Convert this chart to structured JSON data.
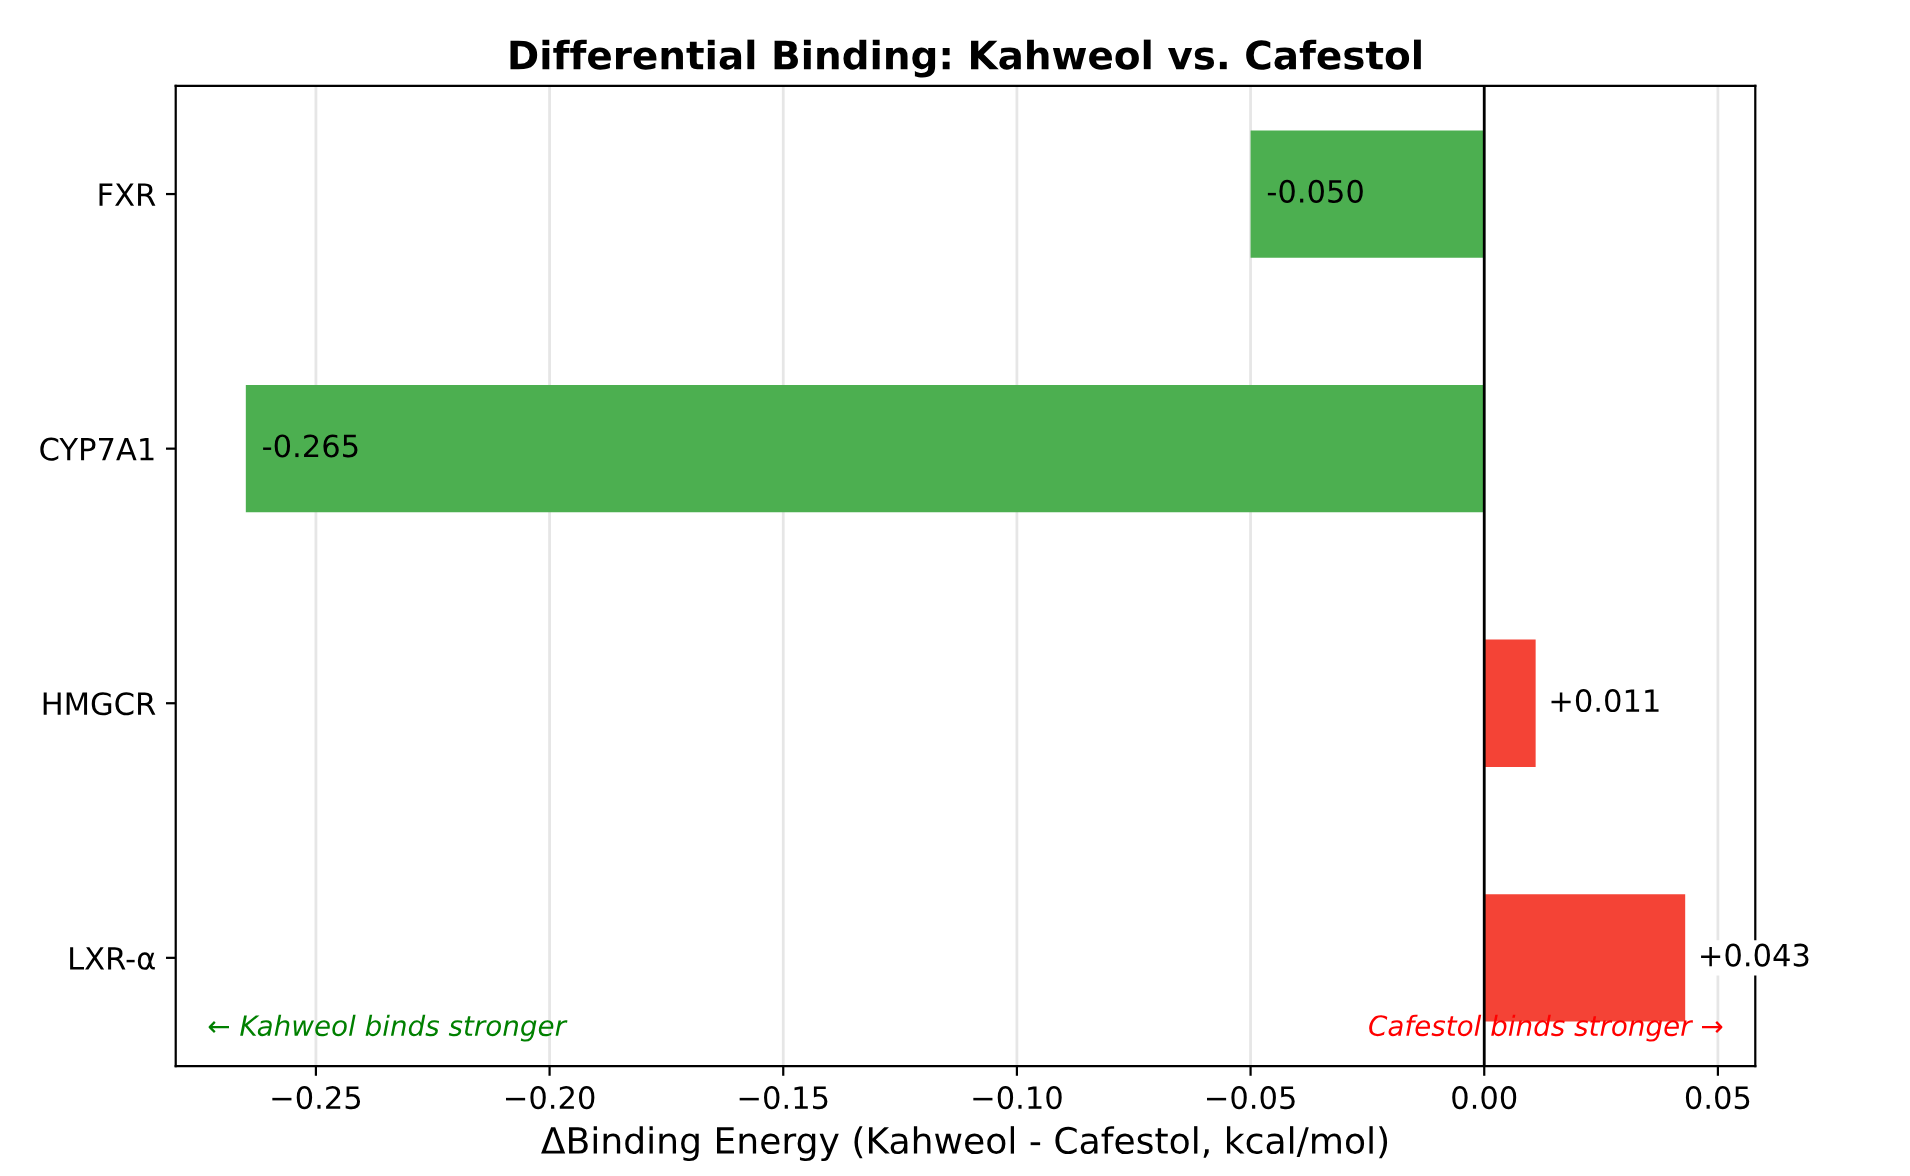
{
  "chart_data": {
    "type": "bar",
    "orientation": "horizontal",
    "title": "Differential Binding: Kahweol vs. Cafestol",
    "xlabel": "ΔBinding Energy (Kahweol - Cafestol, kcal/mol)",
    "categories": [
      "FXR",
      "CYP7A1",
      "HMGCR",
      "LXR-α"
    ],
    "values": [
      -0.05,
      -0.265,
      0.011,
      0.043
    ],
    "colors": [
      "#4caf50",
      "#4caf50",
      "#f44336",
      "#f44336"
    ],
    "value_labels": [
      "-0.050",
      "-0.265",
      "+0.011",
      "+0.043"
    ],
    "xlim": [
      -0.28,
      0.058
    ],
    "xticks": [
      {
        "value": -0.25,
        "label": "−0.25"
      },
      {
        "value": -0.2,
        "label": "−0.20"
      },
      {
        "value": -0.15,
        "label": "−0.15"
      },
      {
        "value": -0.1,
        "label": "−0.10"
      },
      {
        "value": -0.05,
        "label": "−0.05"
      },
      {
        "value": 0,
        "label": "0.00"
      },
      {
        "value": 0.05,
        "label": "0.05"
      }
    ],
    "ref_lines": [
      {
        "axis": "x",
        "value": 0,
        "color": "#000000"
      }
    ],
    "annotations": [
      "← Kahweol binds stronger",
      "Cafestol binds stronger →"
    ],
    "grid": "x",
    "legend": false
  }
}
